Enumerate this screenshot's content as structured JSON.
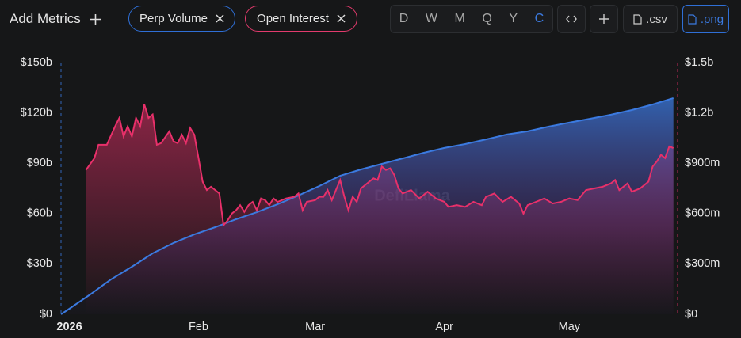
{
  "toolbar": {
    "add_metrics": "Add Metrics",
    "intervals": [
      "D",
      "W",
      "M",
      "Q",
      "Y",
      "C"
    ],
    "exports": [
      ".csv",
      ".png"
    ]
  },
  "chart_data": {
    "type": "area",
    "watermark": "DefiLlama",
    "xlim": [
      -2,
      146
    ],
    "xticks": [
      {
        "value": 0,
        "label": "2026"
      },
      {
        "value": 31,
        "label": "Feb"
      },
      {
        "value": 59,
        "label": "Mar"
      },
      {
        "value": 90,
        "label": "Apr"
      },
      {
        "value": 120,
        "label": "May"
      }
    ],
    "ylim": [
      0,
      150
    ],
    "yticks": [
      {
        "value": 0,
        "label": "$0"
      },
      {
        "value": 30,
        "label": "$30b"
      },
      {
        "value": 60,
        "label": "$60b"
      },
      {
        "value": 90,
        "label": "$90b"
      },
      {
        "value": 120,
        "label": "$120b"
      },
      {
        "value": 150,
        "label": "$150b"
      }
    ],
    "y2lim": [
      0,
      1.5
    ],
    "y2ticks": [
      {
        "value": 0,
        "label": "$0"
      },
      {
        "value": 0.3,
        "label": "$300m"
      },
      {
        "value": 0.6,
        "label": "$600m"
      },
      {
        "value": 0.9,
        "label": "$900m"
      },
      {
        "value": 1.2,
        "label": "$1.2b"
      },
      {
        "value": 1.5,
        "label": "$1.5b"
      }
    ],
    "grid": false,
    "series": [
      {
        "name": "Perp Volume",
        "color": "#3b7ae0",
        "x": [
          -2,
          0,
          5,
          10,
          15,
          20,
          25,
          30,
          35,
          40,
          45,
          50,
          55,
          60,
          65,
          70,
          75,
          80,
          85,
          90,
          95,
          100,
          105,
          110,
          115,
          120,
          125,
          130,
          135,
          140,
          145
        ],
        "values": [
          0,
          3.3,
          11.8,
          20.8,
          28.3,
          36.3,
          42.5,
          47.6,
          51.9,
          56.6,
          60.8,
          65.6,
          70.8,
          76.4,
          82.5,
          86.3,
          89.6,
          92.9,
          96.2,
          99.1,
          101.4,
          104.2,
          107.1,
          109.0,
          111.8,
          114.2,
          116.5,
          118.9,
          121.7,
          125.0,
          128.8
        ]
      },
      {
        "name": "Open Interest",
        "color": "#e8306a",
        "axis": "y2",
        "x": [
          4,
          6,
          7,
          9,
          11,
          12,
          13,
          14,
          15,
          16,
          17,
          18,
          19,
          20,
          21,
          22,
          24,
          25,
          26,
          27,
          28,
          29,
          30,
          31,
          32,
          33,
          34,
          35,
          36,
          37,
          38,
          39,
          40,
          41,
          42,
          43,
          44,
          45,
          46,
          47,
          48,
          49,
          50,
          52,
          54,
          55,
          56,
          57,
          59,
          60,
          61,
          62,
          63,
          64,
          65,
          66,
          67,
          68,
          69,
          70,
          72,
          73,
          74,
          75,
          76,
          77,
          78,
          79,
          80,
          82,
          84,
          86,
          88,
          90,
          91,
          93,
          95,
          97,
          99,
          100,
          102,
          104,
          106,
          108,
          109,
          110,
          112,
          114,
          116,
          118,
          120,
          122,
          124,
          126,
          128,
          130,
          131,
          132,
          134,
          135,
          137,
          139,
          140,
          141,
          142,
          143,
          144,
          145
        ],
        "values": [
          0.86,
          0.93,
          1.01,
          1.01,
          1.12,
          1.17,
          1.06,
          1.12,
          1.06,
          1.17,
          1.12,
          1.25,
          1.17,
          1.19,
          1.01,
          1.02,
          1.09,
          1.03,
          1.02,
          1.07,
          1.02,
          1.11,
          1.07,
          0.93,
          0.79,
          0.74,
          0.76,
          0.74,
          0.72,
          0.53,
          0.56,
          0.6,
          0.62,
          0.65,
          0.61,
          0.65,
          0.67,
          0.62,
          0.69,
          0.68,
          0.65,
          0.69,
          0.67,
          0.69,
          0.7,
          0.72,
          0.62,
          0.67,
          0.68,
          0.7,
          0.7,
          0.74,
          0.68,
          0.74,
          0.8,
          0.7,
          0.62,
          0.7,
          0.67,
          0.75,
          0.79,
          0.81,
          0.8,
          0.88,
          0.86,
          0.87,
          0.83,
          0.75,
          0.72,
          0.74,
          0.69,
          0.73,
          0.69,
          0.67,
          0.64,
          0.65,
          0.64,
          0.67,
          0.65,
          0.7,
          0.72,
          0.67,
          0.7,
          0.66,
          0.6,
          0.65,
          0.67,
          0.69,
          0.66,
          0.67,
          0.69,
          0.68,
          0.74,
          0.75,
          0.76,
          0.78,
          0.8,
          0.74,
          0.78,
          0.73,
          0.75,
          0.79,
          0.88,
          0.91,
          0.95,
          0.93,
          1.0,
          0.99
        ]
      }
    ]
  }
}
